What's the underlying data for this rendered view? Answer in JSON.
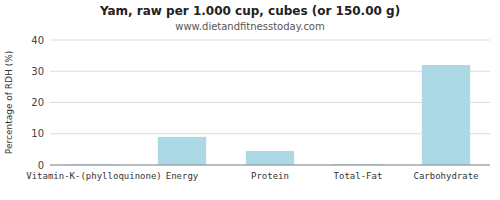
{
  "chart_data": {
    "type": "bar",
    "title": "Yam, raw per 1.000 cup, cubes (or 150.00 g)",
    "subtitle": "www.dietandfitnesstoday.com",
    "categories": [
      "Vitamin-K-(phylloquinone)",
      "Energy",
      "Protein",
      "Total-Fat",
      "Carbohydrate"
    ],
    "values": [
      0.2,
      9.0,
      4.5,
      0.3,
      32.0
    ],
    "color": "#add8e6",
    "ylabel": "Percentage of RDH (%)",
    "ylim": [
      0,
      40
    ],
    "yticks": [
      0,
      10,
      20,
      30,
      40
    ],
    "grid": true
  }
}
